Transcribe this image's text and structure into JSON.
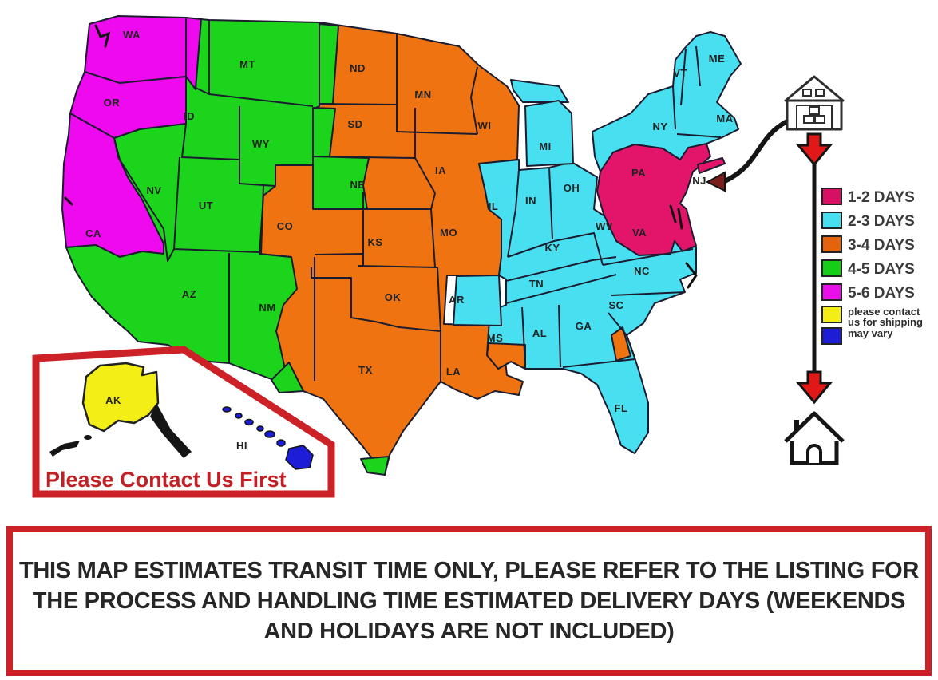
{
  "colors": {
    "zone": {
      "magenta": "#EE09EE",
      "green": "#1DD41D",
      "orange": "#EF7411",
      "cyan": "#48DFF0",
      "crimson": "#E3156B",
      "yellow": "#F2EE16",
      "blue": "#1D1DD8",
      "white": "#FFFFFF"
    },
    "accents": {
      "border_red": "#CB2127",
      "text_red": "#C32026",
      "arrow_red": "#E01818",
      "arrow_maroon": "#7A1D1D",
      "line_black": "#151515",
      "banner_text": "#262626",
      "legend_text": "#3B3B3B",
      "ak_label": "#4A4A12"
    }
  },
  "map": {
    "region_labels": [
      "WA",
      "OR",
      "CA",
      "NV",
      "ID",
      "MT",
      "WY",
      "UT",
      "AZ",
      "NM",
      "CO",
      "ND",
      "SD",
      "NE",
      "KS",
      "OK",
      "TX",
      "MN",
      "IA",
      "MO",
      "AR",
      "LA",
      "WI",
      "IL",
      "MS",
      "MI",
      "IN",
      "OH",
      "KY",
      "TN",
      "AL",
      "GA",
      "WV",
      "VA",
      "NC",
      "SC",
      "FL",
      "PA",
      "NY",
      "VT",
      "ME",
      "MA",
      "NJ",
      "AK",
      "HI"
    ],
    "inset_note": "Please Contact Us First"
  },
  "legend": {
    "items": [
      {
        "label": "1-2 DAYS",
        "color": "#D81064"
      },
      {
        "label": "2-3 DAYS",
        "color": "#48DFF0"
      },
      {
        "label": "3-4 DAYS",
        "color": "#E4640D"
      },
      {
        "label": "4-5 DAYS",
        "color": "#17CE17"
      },
      {
        "label": "5-6 DAYS",
        "color": "#EA0FEA"
      },
      {
        "label": "please contact us for shipping",
        "label_lines": [
          "please contact",
          "us for shipping"
        ],
        "color": "#F2EE16"
      },
      {
        "label": "may vary",
        "color": "#1D1DD8"
      }
    ]
  },
  "banner": {
    "lines": [
      "THIS MAP ESTIMATES TRANSIT TIME ONLY, PLEASE REFER TO THE LISTING FOR",
      "THE PROCESS AND HANDLING TIME ESTIMATED DELIVERY DAYS (WEEKENDS",
      "AND HOLIDAYS ARE NOT INCLUDED)"
    ]
  }
}
